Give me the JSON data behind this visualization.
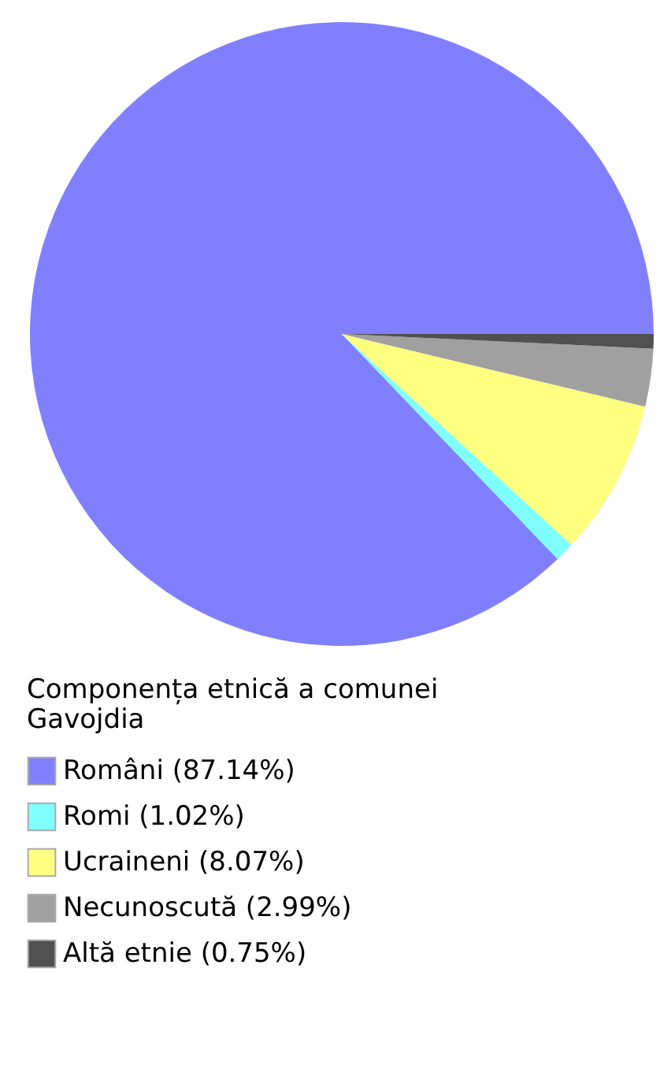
{
  "chart_data": {
    "type": "pie",
    "legend_title": "Componența etnică a comunei Gavojdia",
    "categories": [
      "Români (87.14%)",
      "Romi (1.02%)",
      "Ucraineni (8.07%)",
      "Necunoscută (2.99%)",
      "Altă etnie (0.75%)"
    ],
    "values": [
      87.14,
      1.02,
      8.07,
      2.99,
      0.75
    ],
    "colors": [
      "#8080ff",
      "#80ffff",
      "#ffff80",
      "#a0a0a0",
      "#505050"
    ],
    "legend": "bottom"
  }
}
